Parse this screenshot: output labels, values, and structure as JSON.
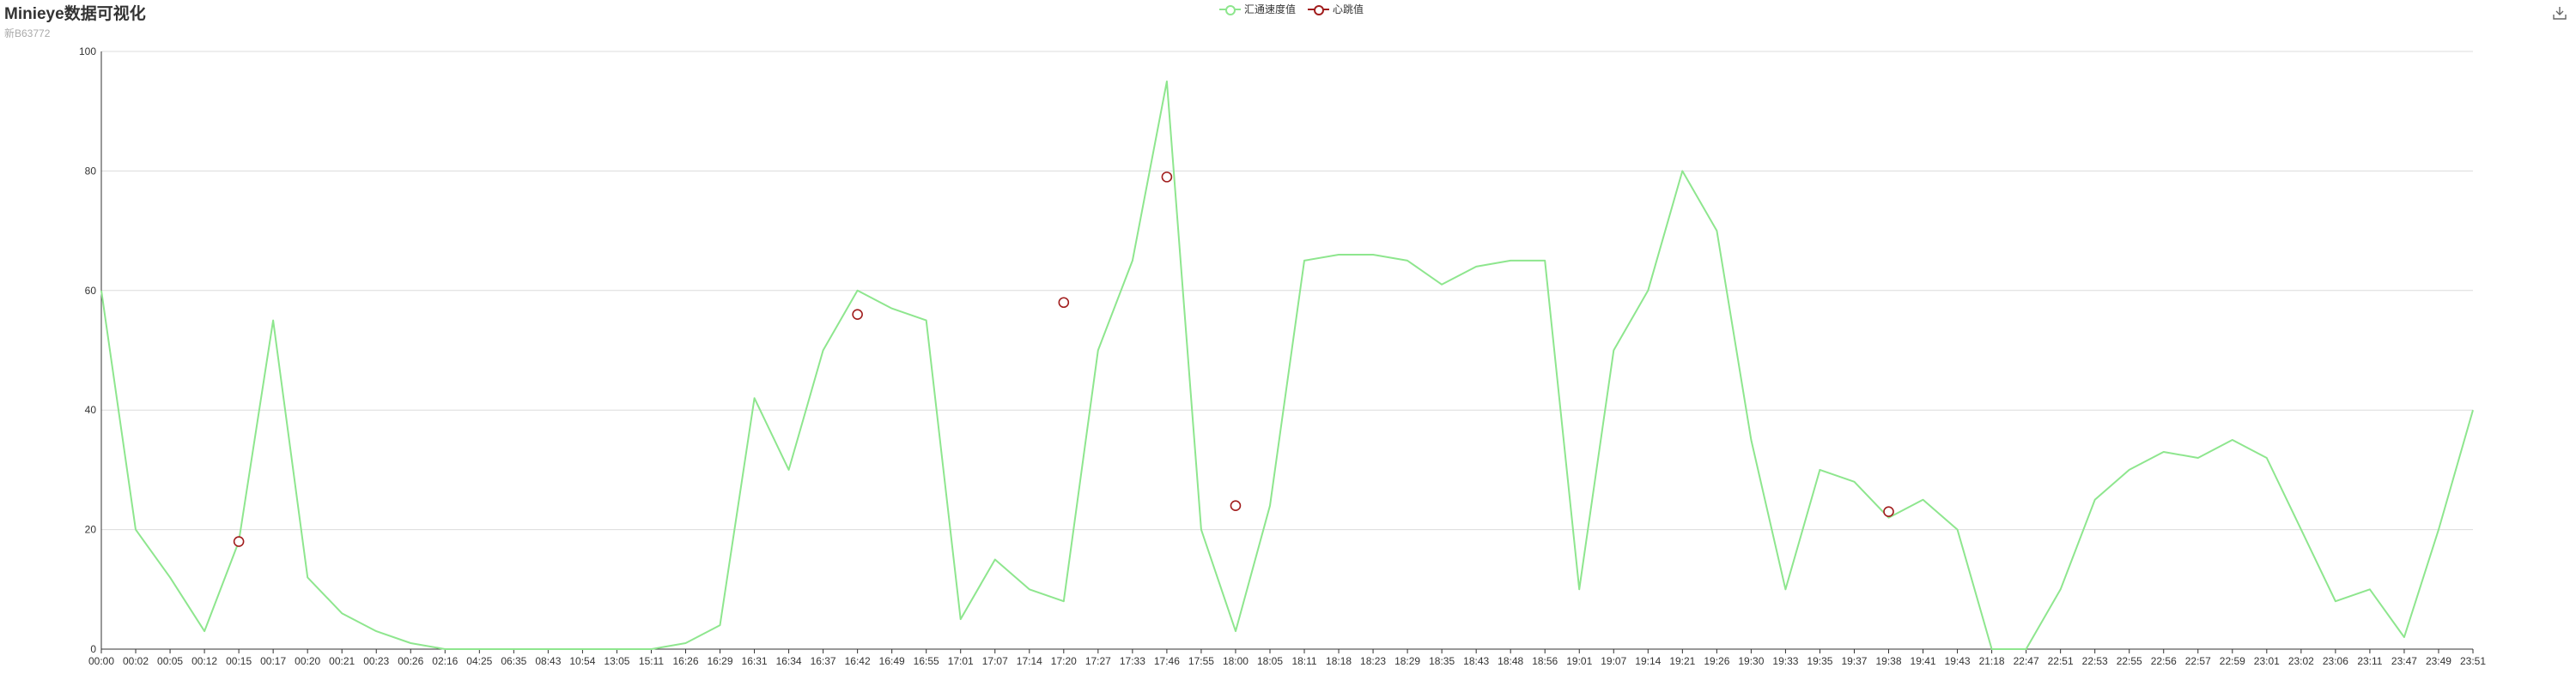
{
  "header": {
    "title": "Minieye数据可视化",
    "subtitle": "新B63772"
  },
  "toolbox": {
    "icon": "download-icon"
  },
  "colors": {
    "speed": "#8ee68e",
    "heart": "#a11d1d",
    "grid": "#dcdcdc",
    "axis": "#333333"
  },
  "chart_data": {
    "type": "line",
    "title": "Minieye数据可视化",
    "subtitle": "新B63772",
    "ylim": [
      0,
      100
    ],
    "yticks": [
      0,
      20,
      40,
      60,
      80,
      100
    ],
    "grid": true,
    "legend_position": "top-center",
    "categories": [
      "00:00",
      "00:02",
      "00:05",
      "00:12",
      "00:15",
      "00:17",
      "00:20",
      "00:21",
      "00:23",
      "00:26",
      "02:16",
      "04:25",
      "06:35",
      "08:43",
      "10:54",
      "13:05",
      "15:11",
      "16:26",
      "16:29",
      "16:31",
      "16:34",
      "16:37",
      "16:42",
      "16:49",
      "16:55",
      "17:01",
      "17:07",
      "17:14",
      "17:20",
      "17:27",
      "17:33",
      "17:46",
      "17:55",
      "18:00",
      "18:05",
      "18:11",
      "18:18",
      "18:23",
      "18:29",
      "18:35",
      "18:43",
      "18:48",
      "18:56",
      "19:01",
      "19:07",
      "19:14",
      "19:21",
      "19:26",
      "19:30",
      "19:33",
      "19:35",
      "19:37",
      "19:38",
      "19:41",
      "19:43",
      "21:18",
      "22:47",
      "22:51",
      "22:53",
      "22:55",
      "22:56",
      "22:57",
      "22:59",
      "23:01",
      "23:02",
      "23:06",
      "23:11",
      "23:47",
      "23:49",
      "23:51"
    ],
    "series": [
      {
        "name": "汇通速度值",
        "color": "#8ee68e",
        "values": [
          60,
          20,
          12,
          3,
          18,
          55,
          12,
          6,
          3,
          1,
          0,
          0,
          0,
          0,
          0,
          0,
          0,
          1,
          4,
          42,
          30,
          50,
          60,
          57,
          55,
          5,
          15,
          10,
          8,
          50,
          65,
          95,
          20,
          3,
          24,
          65,
          66,
          66,
          65,
          61,
          64,
          65,
          65,
          10,
          50,
          60,
          80,
          70,
          35,
          10,
          30,
          28,
          22,
          25,
          20,
          0,
          0,
          10,
          25,
          30,
          33,
          32,
          35,
          32,
          20,
          8,
          10,
          2,
          20,
          40
        ]
      },
      {
        "name": "心跳值",
        "color": "#a11d1d",
        "points": [
          {
            "x": "00:15",
            "y": 18
          },
          {
            "x": "16:42",
            "y": 56
          },
          {
            "x": "17:20",
            "y": 58
          },
          {
            "x": "17:46",
            "y": 79
          },
          {
            "x": "18:00",
            "y": 24
          },
          {
            "x": "19:38",
            "y": 23
          }
        ]
      }
    ]
  }
}
